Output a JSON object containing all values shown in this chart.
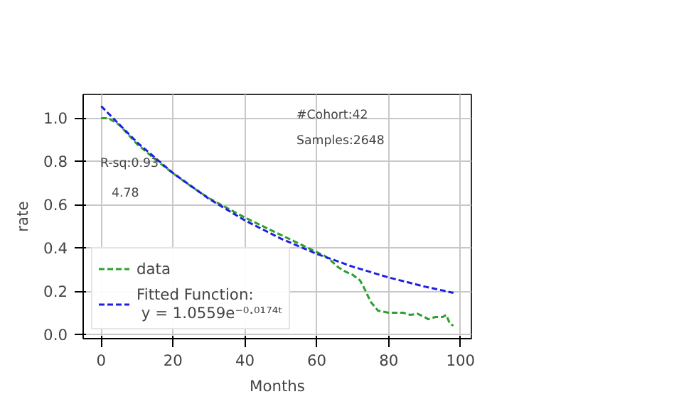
{
  "chart_data": {
    "type": "line",
    "xlabel": "Months",
    "ylabel": "rate",
    "xlim": [
      -5,
      103
    ],
    "ylim": [
      -0.02,
      1.11
    ],
    "xticks": [
      0,
      20,
      40,
      60,
      80,
      100
    ],
    "yticks": [
      {
        "value": 0,
        "label": "0.0"
      },
      0.2,
      0.4,
      0.6,
      0.8,
      {
        "value": 1,
        "label": "1.0"
      }
    ],
    "grid": true,
    "legend": "bottom left",
    "marker": "none",
    "line_style": "dashed",
    "annotations": [
      "#Cohort:42",
      "Samples:2648",
      "R-sq:0.93",
      "4.78"
    ],
    "series": [
      {
        "name": "data",
        "color": "#2ca02c",
        "x": [
          0,
          2,
          5,
          10,
          15,
          20,
          25,
          30,
          35,
          40,
          45,
          50,
          55,
          60,
          62,
          64,
          66,
          68,
          70,
          72,
          73,
          75,
          77,
          80,
          84,
          86,
          88,
          90,
          91,
          93,
          95,
          96,
          97,
          98
        ],
        "values": [
          1.0,
          1.0,
          0.97,
          0.88,
          0.81,
          0.745,
          0.685,
          0.63,
          0.585,
          0.54,
          0.5,
          0.46,
          0.42,
          0.38,
          0.365,
          0.34,
          0.31,
          0.29,
          0.275,
          0.25,
          0.22,
          0.15,
          0.11,
          0.1,
          0.1,
          0.09,
          0.095,
          0.08,
          0.07,
          0.08,
          0.08,
          0.09,
          0.05,
          0.04
        ]
      },
      {
        "name": "Fitted Function:\n y = 1.0559e⁻⁰·⁰¹⁷⁴ᵗ",
        "color": "#1f1fe0",
        "x": [
          0,
          10,
          20,
          30,
          40,
          50,
          60,
          70,
          80,
          90,
          98
        ],
        "values": [
          1.056,
          0.888,
          0.746,
          0.627,
          0.527,
          0.443,
          0.372,
          0.313,
          0.263,
          0.221,
          0.192
        ]
      }
    ]
  }
}
